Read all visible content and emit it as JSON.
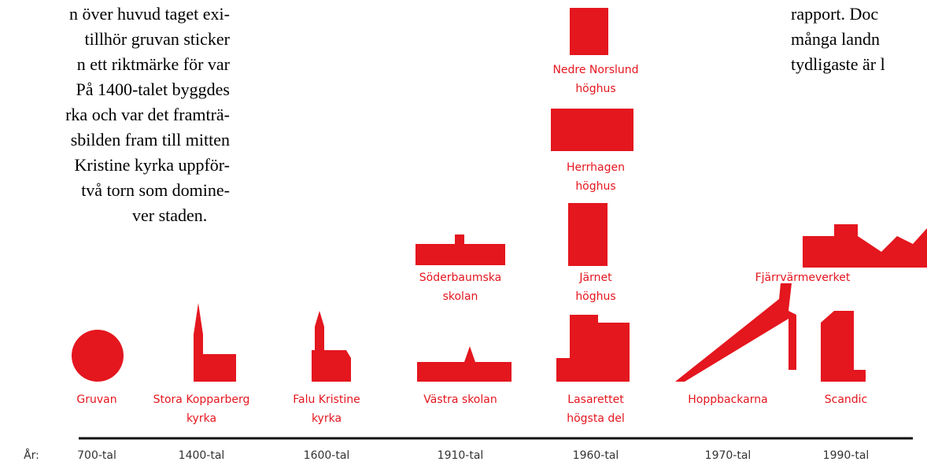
{
  "left_text": [
    "n över huvud taget exi-",
    "tillhör gruvan sticker",
    "n ett riktmärke för var",
    "På 1400-talet byggdes",
    "rka och var det framträ-",
    "sbilden fram till mitten",
    "Kristine kyrka uppför-",
    "två torn som domine-",
    "ver staden."
  ],
  "right_text": [
    "rapport. Doc",
    "många landn",
    "tydligaste är l"
  ],
  "landmarks": [
    {
      "lines": [
        "Gruvan"
      ]
    },
    {
      "lines": [
        "Stora Kopparberg",
        "kyrka"
      ]
    },
    {
      "lines": [
        "Falu Kristine",
        "kyrka"
      ]
    },
    {
      "lines": [
        "Västra skolan"
      ]
    },
    {
      "lines": [
        "Söderbaumska",
        "skolan"
      ]
    },
    {
      "lines": [
        "Lasarettet",
        "högsta del"
      ]
    },
    {
      "lines": [
        "Järnet",
        "höghus"
      ]
    },
    {
      "lines": [
        "Herrhagen",
        "höghus"
      ]
    },
    {
      "lines": [
        "Nedre Norslund",
        "höghus"
      ]
    },
    {
      "lines": [
        "Hoppbackarna"
      ]
    },
    {
      "lines": [
        "Fjärrvärmeverket"
      ]
    },
    {
      "lines": [
        "Scandic"
      ]
    }
  ],
  "timeline": {
    "label": "År:",
    "periods": [
      "700-tal",
      "1400-tal",
      "1600-tal",
      "1910-tal",
      "1960-tal",
      "1970-tal",
      "1990-tal"
    ]
  }
}
